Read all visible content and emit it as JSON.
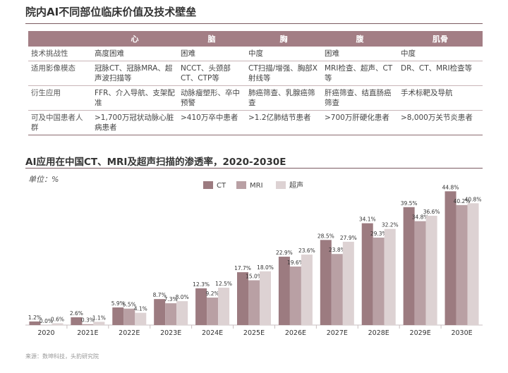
{
  "title": "院内AI不同部位临床价值及技术壁垒",
  "table": {
    "headers": [
      "",
      "心",
      "脑",
      "胸",
      "腹",
      "肌骨"
    ],
    "rows": [
      [
        "技术挑战性",
        "高度困难",
        "困难",
        "中度",
        "困难",
        "中度"
      ],
      [
        "适用影像模态",
        "冠脉CT、冠脉MRA、超声波扫描等",
        "NCCT、头颈部CT、CTP等",
        "CT扫描/增强、胸部X射线等",
        "MRI检查、超声、CT等",
        "DR、CT、MRI检查等"
      ],
      [
        "衍生应用",
        "FFR、介入导航、支架配准",
        "动脉瘤塑形、卒中预警",
        "肺癌筛查、乳腺癌筛查",
        "肝癌筛查、结直肠癌筛查",
        "手术标靶及导航"
      ],
      [
        "可及中国患者人群",
        ">1,700万冠状动脉心脏病患者",
        ">410万卒中患者",
        ">1.2亿肺结节患者",
        ">700万肝硬化患者",
        ">8,000万关节炎患者"
      ]
    ]
  },
  "chart_title": "AI应用在中国CT、MRI及超声扫描的渗透率，2020-2030E",
  "unit_label": "单位：%",
  "source": "来源：数坤科技，头豹研究院",
  "chart_data": {
    "type": "bar",
    "categories": [
      "2020",
      "2021E",
      "2022E",
      "2023E",
      "2024E",
      "2025E",
      "2026E",
      "2027E",
      "2028E",
      "2029E",
      "2030E"
    ],
    "series": [
      {
        "name": "CT",
        "color": "#9c7b80",
        "values": [
          1.2,
          2.6,
          5.9,
          8.7,
          12.3,
          17.7,
          22.9,
          28.5,
          34.1,
          39.5,
          44.8
        ]
      },
      {
        "name": "MRI",
        "color": "#b9a0a4",
        "values": [
          0.0,
          0.3,
          5.5,
          7.3,
          9.2,
          15.0,
          19.6,
          23.8,
          29.3,
          34.8,
          40.2
        ]
      },
      {
        "name": "超声",
        "color": "#ddd2d3",
        "values": [
          0.6,
          1.1,
          4.1,
          8.0,
          12.5,
          18.0,
          23.6,
          27.9,
          32.2,
          36.6,
          40.8
        ]
      }
    ],
    "ylim": [
      0,
      47
    ],
    "legend": "top-center"
  }
}
